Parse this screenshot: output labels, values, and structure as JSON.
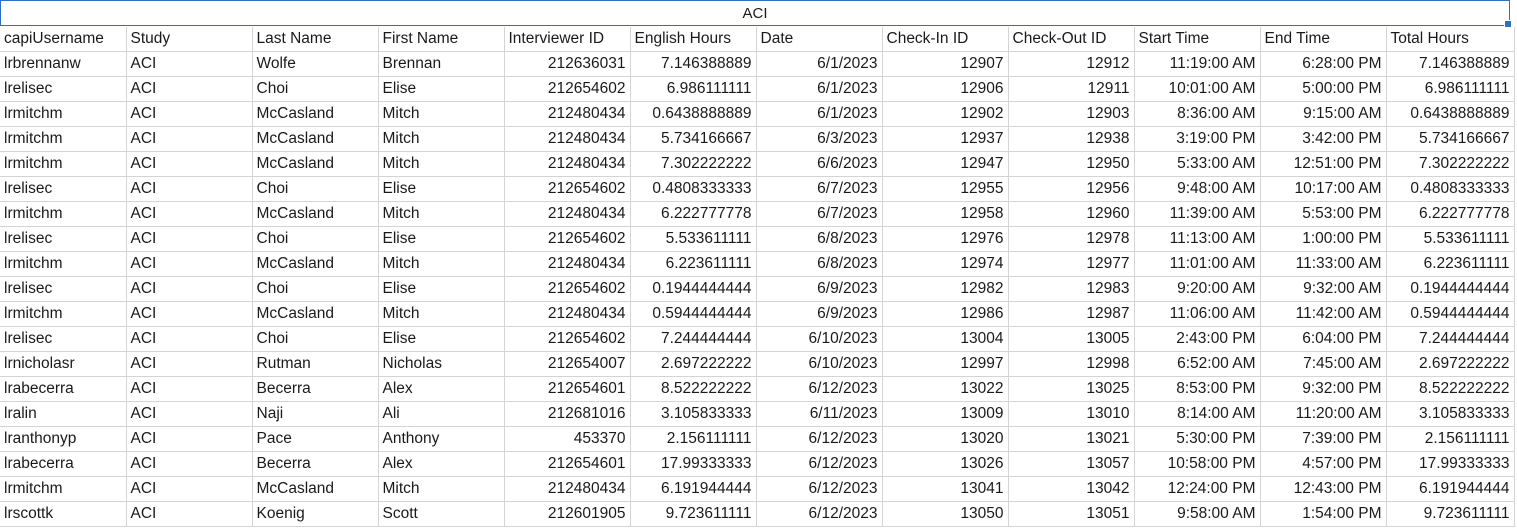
{
  "sheet": {
    "merged_title": "ACI",
    "columns": [
      "capiUsername",
      "Study",
      "Last Name",
      "First Name",
      "Interviewer ID",
      "English Hours",
      "Date",
      "Check-In ID",
      "Check-Out ID",
      "Start Time",
      "End Time",
      "Total Hours"
    ],
    "rows": [
      [
        "lrbrennanw",
        "ACI",
        "Wolfe",
        "Brennan",
        "212636031",
        "7.146388889",
        "6/1/2023",
        "12907",
        "12912",
        "11:19:00 AM",
        "6:28:00 PM",
        "7.146388889"
      ],
      [
        "lrelisec",
        "ACI",
        "Choi",
        "Elise",
        "212654602",
        "6.986111111",
        "6/1/2023",
        "12906",
        "12911",
        "10:01:00 AM",
        "5:00:00 PM",
        "6.986111111"
      ],
      [
        "lrmitchm",
        "ACI",
        "McCasland",
        "Mitch",
        "212480434",
        "0.6438888889",
        "6/1/2023",
        "12902",
        "12903",
        "8:36:00 AM",
        "9:15:00 AM",
        "0.6438888889"
      ],
      [
        "lrmitchm",
        "ACI",
        "McCasland",
        "Mitch",
        "212480434",
        "5.734166667",
        "6/3/2023",
        "12937",
        "12938",
        "3:19:00 PM",
        "3:42:00 PM",
        "5.734166667"
      ],
      [
        "lrmitchm",
        "ACI",
        "McCasland",
        "Mitch",
        "212480434",
        "7.302222222",
        "6/6/2023",
        "12947",
        "12950",
        "5:33:00 AM",
        "12:51:00 PM",
        "7.302222222"
      ],
      [
        "lrelisec",
        "ACI",
        "Choi",
        "Elise",
        "212654602",
        "0.4808333333",
        "6/7/2023",
        "12955",
        "12956",
        "9:48:00 AM",
        "10:17:00 AM",
        "0.4808333333"
      ],
      [
        "lrmitchm",
        "ACI",
        "McCasland",
        "Mitch",
        "212480434",
        "6.222777778",
        "6/7/2023",
        "12958",
        "12960",
        "11:39:00 AM",
        "5:53:00 PM",
        "6.222777778"
      ],
      [
        "lrelisec",
        "ACI",
        "Choi",
        "Elise",
        "212654602",
        "5.533611111",
        "6/8/2023",
        "12976",
        "12978",
        "11:13:00 AM",
        "1:00:00 PM",
        "5.533611111"
      ],
      [
        "lrmitchm",
        "ACI",
        "McCasland",
        "Mitch",
        "212480434",
        "6.223611111",
        "6/8/2023",
        "12974",
        "12977",
        "11:01:00 AM",
        "11:33:00 AM",
        "6.223611111"
      ],
      [
        "lrelisec",
        "ACI",
        "Choi",
        "Elise",
        "212654602",
        "0.1944444444",
        "6/9/2023",
        "12982",
        "12983",
        "9:20:00 AM",
        "9:32:00 AM",
        "0.1944444444"
      ],
      [
        "lrmitchm",
        "ACI",
        "McCasland",
        "Mitch",
        "212480434",
        "0.5944444444",
        "6/9/2023",
        "12986",
        "12987",
        "11:06:00 AM",
        "11:42:00 AM",
        "0.5944444444"
      ],
      [
        "lrelisec",
        "ACI",
        "Choi",
        "Elise",
        "212654602",
        "7.244444444",
        "6/10/2023",
        "13004",
        "13005",
        "2:43:00 PM",
        "6:04:00 PM",
        "7.244444444"
      ],
      [
        "lrnicholasr",
        "ACI",
        "Rutman",
        "Nicholas",
        "212654007",
        "2.697222222",
        "6/10/2023",
        "12997",
        "12998",
        "6:52:00 AM",
        "7:45:00 AM",
        "2.697222222"
      ],
      [
        "lrabecerra",
        "ACI",
        "Becerra",
        "Alex",
        "212654601",
        "8.522222222",
        "6/12/2023",
        "13022",
        "13025",
        "8:53:00 PM",
        "9:32:00 PM",
        "8.522222222"
      ],
      [
        "lralin",
        "ACI",
        "Naji",
        "Ali",
        "212681016",
        "3.105833333",
        "6/11/2023",
        "13009",
        "13010",
        "8:14:00 AM",
        "11:20:00 AM",
        "3.105833333"
      ],
      [
        "lranthonyp",
        "ACI",
        "Pace",
        "Anthony",
        "453370",
        "2.156111111",
        "6/12/2023",
        "13020",
        "13021",
        "5:30:00 PM",
        "7:39:00 PM",
        "2.156111111"
      ],
      [
        "lrabecerra",
        "ACI",
        "Becerra",
        "Alex",
        "212654601",
        "17.99333333",
        "6/12/2023",
        "13026",
        "13057",
        "10:58:00 PM",
        "4:57:00 PM",
        "17.99333333"
      ],
      [
        "lrmitchm",
        "ACI",
        "McCasland",
        "Mitch",
        "212480434",
        "6.191944444",
        "6/12/2023",
        "13041",
        "13042",
        "12:24:00 PM",
        "12:43:00 PM",
        "6.191944444"
      ],
      [
        "lrscottk",
        "ACI",
        "Koenig",
        "Scott",
        "212601905",
        "9.723611111",
        "6/12/2023",
        "13050",
        "13051",
        "9:58:00 AM",
        "1:54:00 PM",
        "9.723611111"
      ]
    ],
    "right_aligned_columns": [
      4,
      5,
      6,
      7,
      8,
      9,
      10,
      11
    ],
    "selection_color": "#2f6fc6",
    "gridline_color": "#d4d4d4"
  }
}
